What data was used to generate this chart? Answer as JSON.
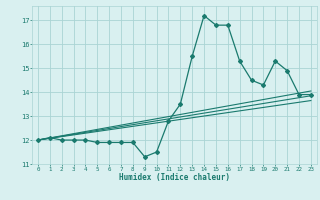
{
  "xlabel": "Humidex (Indice chaleur)",
  "bg_color": "#d9f0f0",
  "grid_color": "#aad4d4",
  "line_color": "#1a7a6e",
  "xlim": [
    -0.5,
    23.5
  ],
  "ylim": [
    11,
    17.6
  ],
  "yticks": [
    11,
    12,
    13,
    14,
    15,
    16,
    17
  ],
  "xticks": [
    0,
    1,
    2,
    3,
    4,
    5,
    6,
    7,
    8,
    9,
    10,
    11,
    12,
    13,
    14,
    15,
    16,
    17,
    18,
    19,
    20,
    21,
    22,
    23
  ],
  "main_line_x": [
    0,
    1,
    2,
    3,
    4,
    5,
    6,
    7,
    8,
    9,
    10,
    11,
    12,
    13,
    14,
    15,
    16,
    17,
    18,
    19,
    20,
    21,
    22,
    23
  ],
  "main_line_y": [
    12.0,
    12.1,
    12.0,
    12.0,
    12.0,
    11.9,
    11.9,
    11.9,
    11.9,
    11.3,
    11.5,
    12.8,
    13.5,
    15.5,
    17.2,
    16.8,
    16.8,
    15.3,
    14.5,
    14.3,
    15.3,
    14.9,
    13.9,
    13.9
  ],
  "line2_x": [
    0,
    23
  ],
  "line2_y": [
    12.0,
    13.85
  ],
  "line3_x": [
    0,
    23
  ],
  "line3_y": [
    12.0,
    13.65
  ],
  "line4_x": [
    0,
    23
  ],
  "line4_y": [
    12.0,
    14.05
  ]
}
